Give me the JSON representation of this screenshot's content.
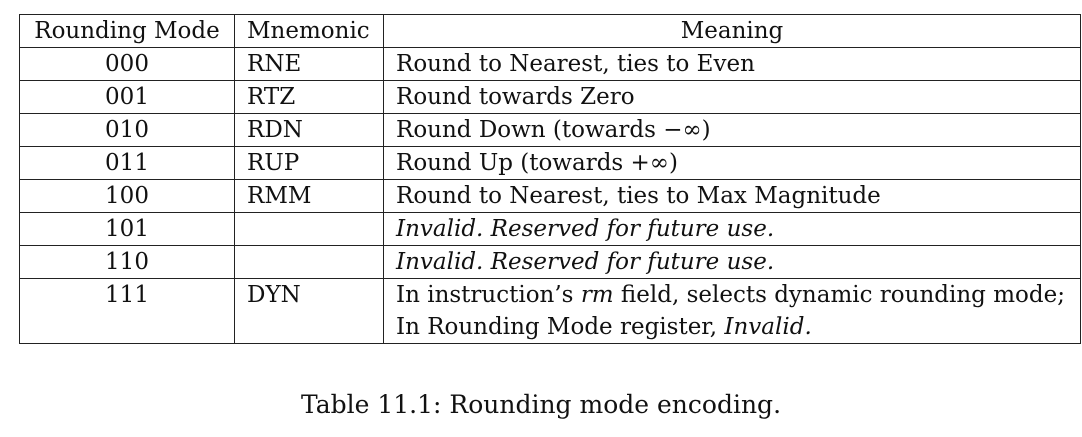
{
  "table": {
    "headers": [
      "Rounding Mode",
      "Mnemonic",
      "Meaning"
    ],
    "rows": [
      {
        "mode": "000",
        "mnemonic": "RNE",
        "meaning": "Round to Nearest, ties to Even"
      },
      {
        "mode": "001",
        "mnemonic": "RTZ",
        "meaning": "Round towards Zero"
      },
      {
        "mode": "010",
        "mnemonic": "RDN",
        "meaning": "Round Down (towards −∞)"
      },
      {
        "mode": "011",
        "mnemonic": "RUP",
        "meaning": "Round Up (towards +∞)"
      },
      {
        "mode": "100",
        "mnemonic": "RMM",
        "meaning": "Round to Nearest, ties to Max Magnitude"
      },
      {
        "mode": "101",
        "mnemonic": "",
        "meaning": "Invalid. Reserved for future use."
      },
      {
        "mode": "110",
        "mnemonic": "",
        "meaning": "Invalid. Reserved for future use."
      },
      {
        "mode": "111",
        "mnemonic": "DYN",
        "meaning_line1_a": "In instruction’s ",
        "meaning_line1_b": "rm",
        "meaning_line1_c": " field, selects dynamic rounding mode;",
        "meaning_line2_a": "In Rounding Mode register, ",
        "meaning_line2_b": "Invalid."
      }
    ]
  },
  "caption": "Table 11.1: Rounding mode encoding."
}
